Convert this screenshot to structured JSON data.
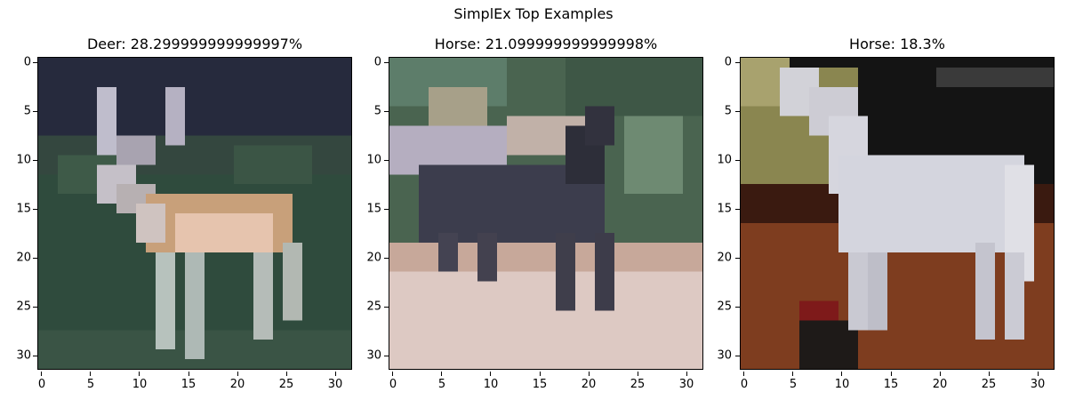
{
  "figure": {
    "suptitle": "SimplEx Top Examples"
  },
  "axes": {
    "xticks": [
      "0",
      "5",
      "10",
      "15",
      "20",
      "25",
      "30"
    ],
    "yticks": [
      "0",
      "5",
      "10",
      "15",
      "20",
      "25",
      "30"
    ]
  },
  "panels": [
    {
      "title": "Deer: 28.299999999999997%",
      "image": "deer",
      "colors": {
        "bg": "#2c4a3a",
        "sky": "#262a3e",
        "body": "#c9a27e",
        "belly": "#e8c9b7",
        "legs": "#a9b3b1",
        "antler": "#b9b8c8"
      }
    },
    {
      "title": "Horse: 21.099999999999998%",
      "image": "dark-horse",
      "colors": {
        "foliage": "#46604a",
        "ground": "#d8c6bf",
        "horse": "#3e3f4e",
        "highlight": "#b9b3c3"
      }
    },
    {
      "title": "Horse: 18.3%",
      "image": "white-horse",
      "colors": {
        "wall": "#1a1a1a",
        "floor": "#7a3b1e",
        "horse": "#d6d8e0",
        "olive": "#8e8a4e"
      }
    }
  ],
  "chart_data": {
    "type": "image-grid",
    "title": "SimplEx Top Examples",
    "images": [
      {
        "label": "Deer",
        "weight_percent": 28.299999999999997
      },
      {
        "label": "Horse",
        "weight_percent": 21.099999999999998
      },
      {
        "label": "Horse",
        "weight_percent": 18.3
      }
    ],
    "xlim": [
      -0.5,
      31.5
    ],
    "ylim": [
      31.5,
      -0.5
    ]
  }
}
